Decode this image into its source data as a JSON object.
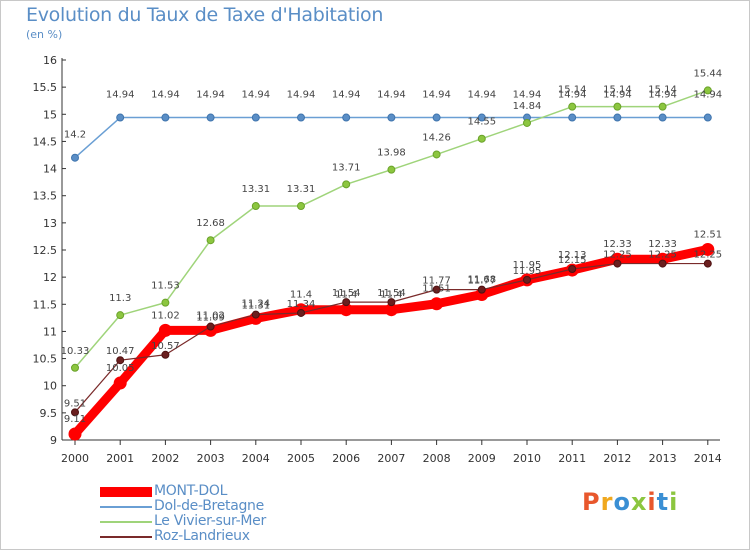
{
  "header": {
    "title": "Evolution du Taux de Taxe d'Habitation",
    "unit": "(en %)"
  },
  "brand": {
    "text": "Proxiti",
    "colors": [
      "#e8572c",
      "#f0a81e",
      "#3a8fd4",
      "#8cc63f",
      "#e8572c",
      "#3a8fd4",
      "#8cc63f"
    ]
  },
  "chart_data": {
    "type": "line",
    "title": "Evolution du Taux de Taxe d'Habitation",
    "ylabel": "(en %)",
    "xlabel": "",
    "x": [
      "2000",
      "2001",
      "2002",
      "2003",
      "2004",
      "2005",
      "2006",
      "2007",
      "2008",
      "2009",
      "2010",
      "2011",
      "2012",
      "2013",
      "2014"
    ],
    "ylim": [
      9,
      16
    ],
    "yticks": [
      "9",
      "9.5",
      "10",
      "10.5",
      "11",
      "11.5",
      "12",
      "12.5",
      "13",
      "13.5",
      "14",
      "14.5",
      "15",
      "15.5",
      "16"
    ],
    "grid": false,
    "legend_position": "bottom-left",
    "series": [
      {
        "name": "MONT-DOL",
        "color": "#ff0000",
        "values": [
          9.11,
          10.05,
          11.02,
          11.02,
          11.24,
          11.4,
          11.4,
          11.4,
          11.51,
          11.68,
          11.95,
          12.13,
          12.33,
          12.33,
          12.51
        ],
        "labels": [
          "9.11",
          "10.05",
          "11.02",
          "11.02",
          "11.24",
          "11.4",
          "11.4",
          "11.4",
          "11.51",
          "11.68",
          "11.95",
          "12.13",
          "12.33",
          "12.33",
          "12.51"
        ]
      },
      {
        "name": "Dol-de-Bretagne",
        "color": "#6a9fd4",
        "values": [
          14.2,
          14.94,
          14.94,
          14.94,
          14.94,
          14.94,
          14.94,
          14.94,
          14.94,
          14.94,
          14.94,
          14.94,
          14.94,
          14.94,
          14.94
        ],
        "labels": [
          "14.2",
          "14.94",
          "14.94",
          "14.94",
          "14.94",
          "14.94",
          "14.94",
          "14.94",
          "14.94",
          "14.94",
          "14.94",
          "14.94",
          "14.94",
          "14.94",
          "14.94"
        ]
      },
      {
        "name": "Le Vivier-sur-Mer",
        "color": "#9fd47a",
        "values": [
          10.33,
          11.3,
          11.53,
          12.68,
          13.31,
          13.31,
          13.71,
          13.98,
          14.26,
          14.55,
          14.84,
          15.14,
          15.14,
          15.14,
          15.44
        ],
        "labels": [
          "10.33",
          "11.3",
          "11.53",
          "12.68",
          "13.31",
          "13.31",
          "13.71",
          "13.98",
          "14.26",
          "14.55",
          "14.84",
          "15.14",
          "15.14",
          "15.14",
          "15.44"
        ]
      },
      {
        "name": "Roz-Landrieux",
        "color": "#7a2a2a",
        "values": [
          9.51,
          10.47,
          10.57,
          11.09,
          11.31,
          11.34,
          11.54,
          11.54,
          11.77,
          11.77,
          11.95,
          12.15,
          12.25,
          12.25,
          12.25
        ],
        "labels": [
          "9.51",
          "10.47",
          "10.57",
          "11.09",
          "11.31",
          "11.34",
          "11.54",
          "11.54",
          "11.77",
          "11.77",
          "11.95",
          "12.15",
          "12.25",
          "12.25",
          "12.25"
        ]
      }
    ]
  }
}
